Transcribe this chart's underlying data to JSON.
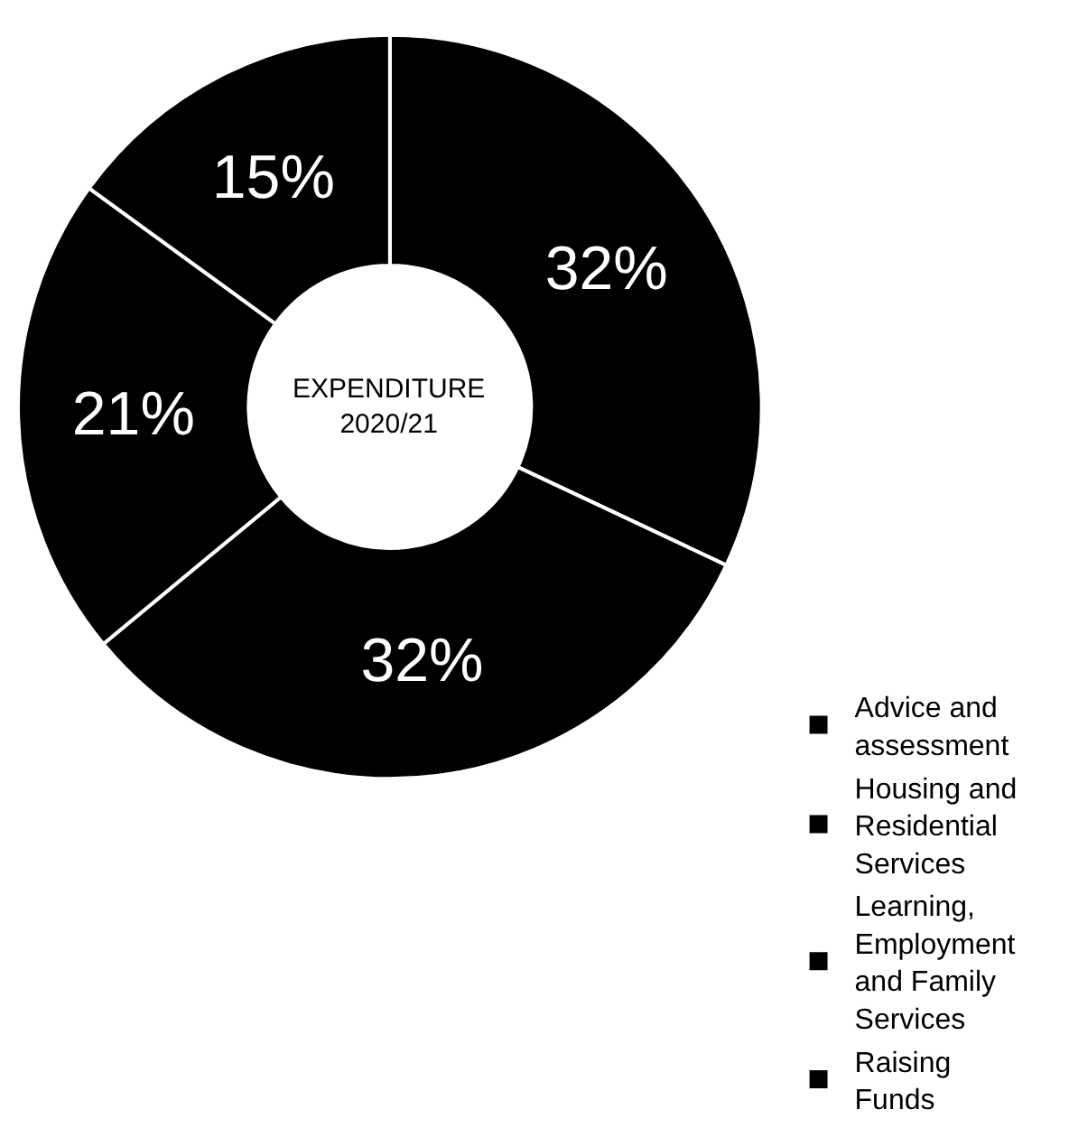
{
  "chart_data": {
    "type": "donut",
    "title": "EXPENDITURE 2020/21",
    "categories": [
      "Advice and assessment",
      "Housing and Residential Services",
      "Learning, Employment and Family Services",
      "Raising Funds"
    ],
    "values": [
      32,
      32,
      21,
      15
    ],
    "value_labels": [
      "32%",
      "32%",
      "21%",
      "15%"
    ],
    "colors": [
      "#000000",
      "#000000",
      "#000000",
      "#000000"
    ],
    "legend": "bottom right"
  }
}
